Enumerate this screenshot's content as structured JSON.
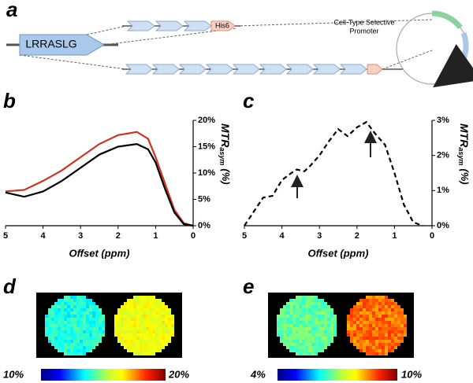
{
  "panel_labels": [
    "a",
    "b",
    "c",
    "d",
    "e"
  ],
  "diagram": {
    "construct_label": "LRRASLG",
    "tag_label": "His6",
    "promoter_label": [
      "Cell-Type Selective",
      "Promoter"
    ]
  },
  "chart_data": [
    {
      "type": "line",
      "xlabel": "Offset (ppm)",
      "ylabel": "MTR",
      "ylabel_sub": "asym",
      "ylabel_unit": "(%)",
      "x": [
        5,
        4.5,
        4,
        3.5,
        3,
        2.5,
        2,
        1.5,
        1.2,
        1,
        0.75,
        0.5,
        0.25,
        0
      ],
      "series": [
        {
          "name": "red",
          "color": "#d0321e",
          "dash": false,
          "values": [
            6.5,
            6.8,
            8.5,
            10.5,
            13,
            15.5,
            17.2,
            17.8,
            16.5,
            13,
            8,
            3,
            0.5,
            0
          ]
        },
        {
          "name": "black",
          "color": "#000000",
          "dash": false,
          "values": [
            6.3,
            5.5,
            6.5,
            8.5,
            11,
            13.5,
            15,
            15.5,
            14.5,
            12,
            7,
            2.5,
            0.3,
            0
          ]
        }
      ],
      "xlim": [
        5,
        0
      ],
      "xticks": [
        5,
        4,
        3,
        2,
        1,
        0
      ],
      "ylim": [
        0,
        20
      ],
      "yticks": [
        {
          "value": 0,
          "label": "0%"
        },
        {
          "value": 5,
          "label": "5%"
        },
        {
          "value": 10,
          "label": "10%"
        },
        {
          "value": 15,
          "label": "15%"
        },
        {
          "value": 20,
          "label": "20%"
        }
      ]
    },
    {
      "type": "line",
      "xlabel": "Offset (ppm)",
      "ylabel": "MTR",
      "ylabel_sub": "asym",
      "ylabel_unit": "(%)",
      "x": [
        5,
        4.75,
        4.5,
        4.25,
        4,
        3.75,
        3.6,
        3.4,
        3.25,
        3,
        2.75,
        2.5,
        2.25,
        2,
        1.75,
        1.5,
        1.25,
        1,
        0.75,
        0.5,
        0.25
      ],
      "series": [
        {
          "name": "dashed",
          "color": "#000000",
          "dash": true,
          "values": [
            0,
            0.4,
            0.8,
            0.85,
            1.3,
            1.5,
            1.6,
            1.55,
            1.7,
            2.0,
            2.4,
            2.75,
            2.55,
            2.8,
            2.95,
            2.6,
            2.3,
            1.5,
            0.6,
            0.1,
            0
          ]
        }
      ],
      "xlim": [
        5,
        0
      ],
      "xticks": [
        5,
        4,
        3,
        2,
        1,
        0
      ],
      "ylim": [
        0,
        3
      ],
      "yticks": [
        {
          "value": 0,
          "label": "0%"
        },
        {
          "value": 1,
          "label": "1%"
        },
        {
          "value": 2,
          "label": "2%"
        },
        {
          "value": 3,
          "label": "3%"
        }
      ]
    }
  ],
  "colorbars": [
    {
      "min_label": "10%",
      "max_label": "20%"
    },
    {
      "min_label": "4%",
      "max_label": "10%"
    }
  ]
}
